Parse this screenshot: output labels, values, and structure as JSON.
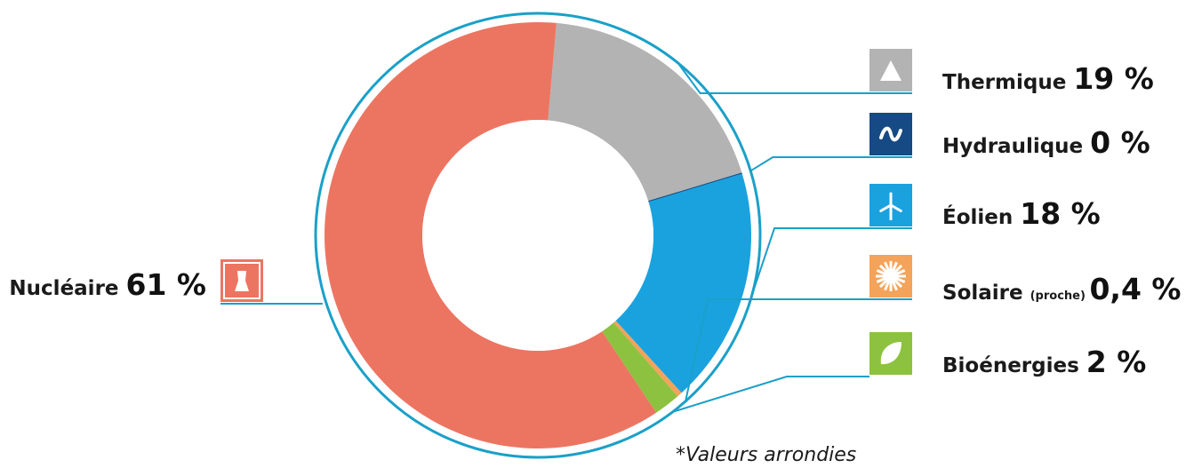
{
  "chart_data": {
    "type": "pie",
    "categories": [
      "Nucléaire",
      "Thermique",
      "Hydraulique",
      "Éolien",
      "Solaire",
      "Bioénergies"
    ],
    "values": [
      61,
      19,
      0,
      18,
      0.4,
      2
    ],
    "value_labels": [
      "61 %",
      "19 %",
      "0 %",
      "18 %",
      "0,4 %",
      "2 %"
    ],
    "label_notes": [
      "",
      "",
      "",
      "",
      "(proche)",
      ""
    ],
    "colors": [
      "#ec7561",
      "#b3b3b3",
      "#154a84",
      "#1aa2df",
      "#f3a35a",
      "#8cc23f"
    ],
    "icons": [
      "cooling-tower-icon",
      "triangle-icon",
      "wave-icon",
      "wind-turbine-icon",
      "sun-icon",
      "leaf-icon"
    ],
    "donut": true,
    "footnote": "*Valeurs arrondies"
  },
  "theme": {
    "ring_color": "#1aa0c8",
    "leader_color": "#1aa0c8"
  }
}
